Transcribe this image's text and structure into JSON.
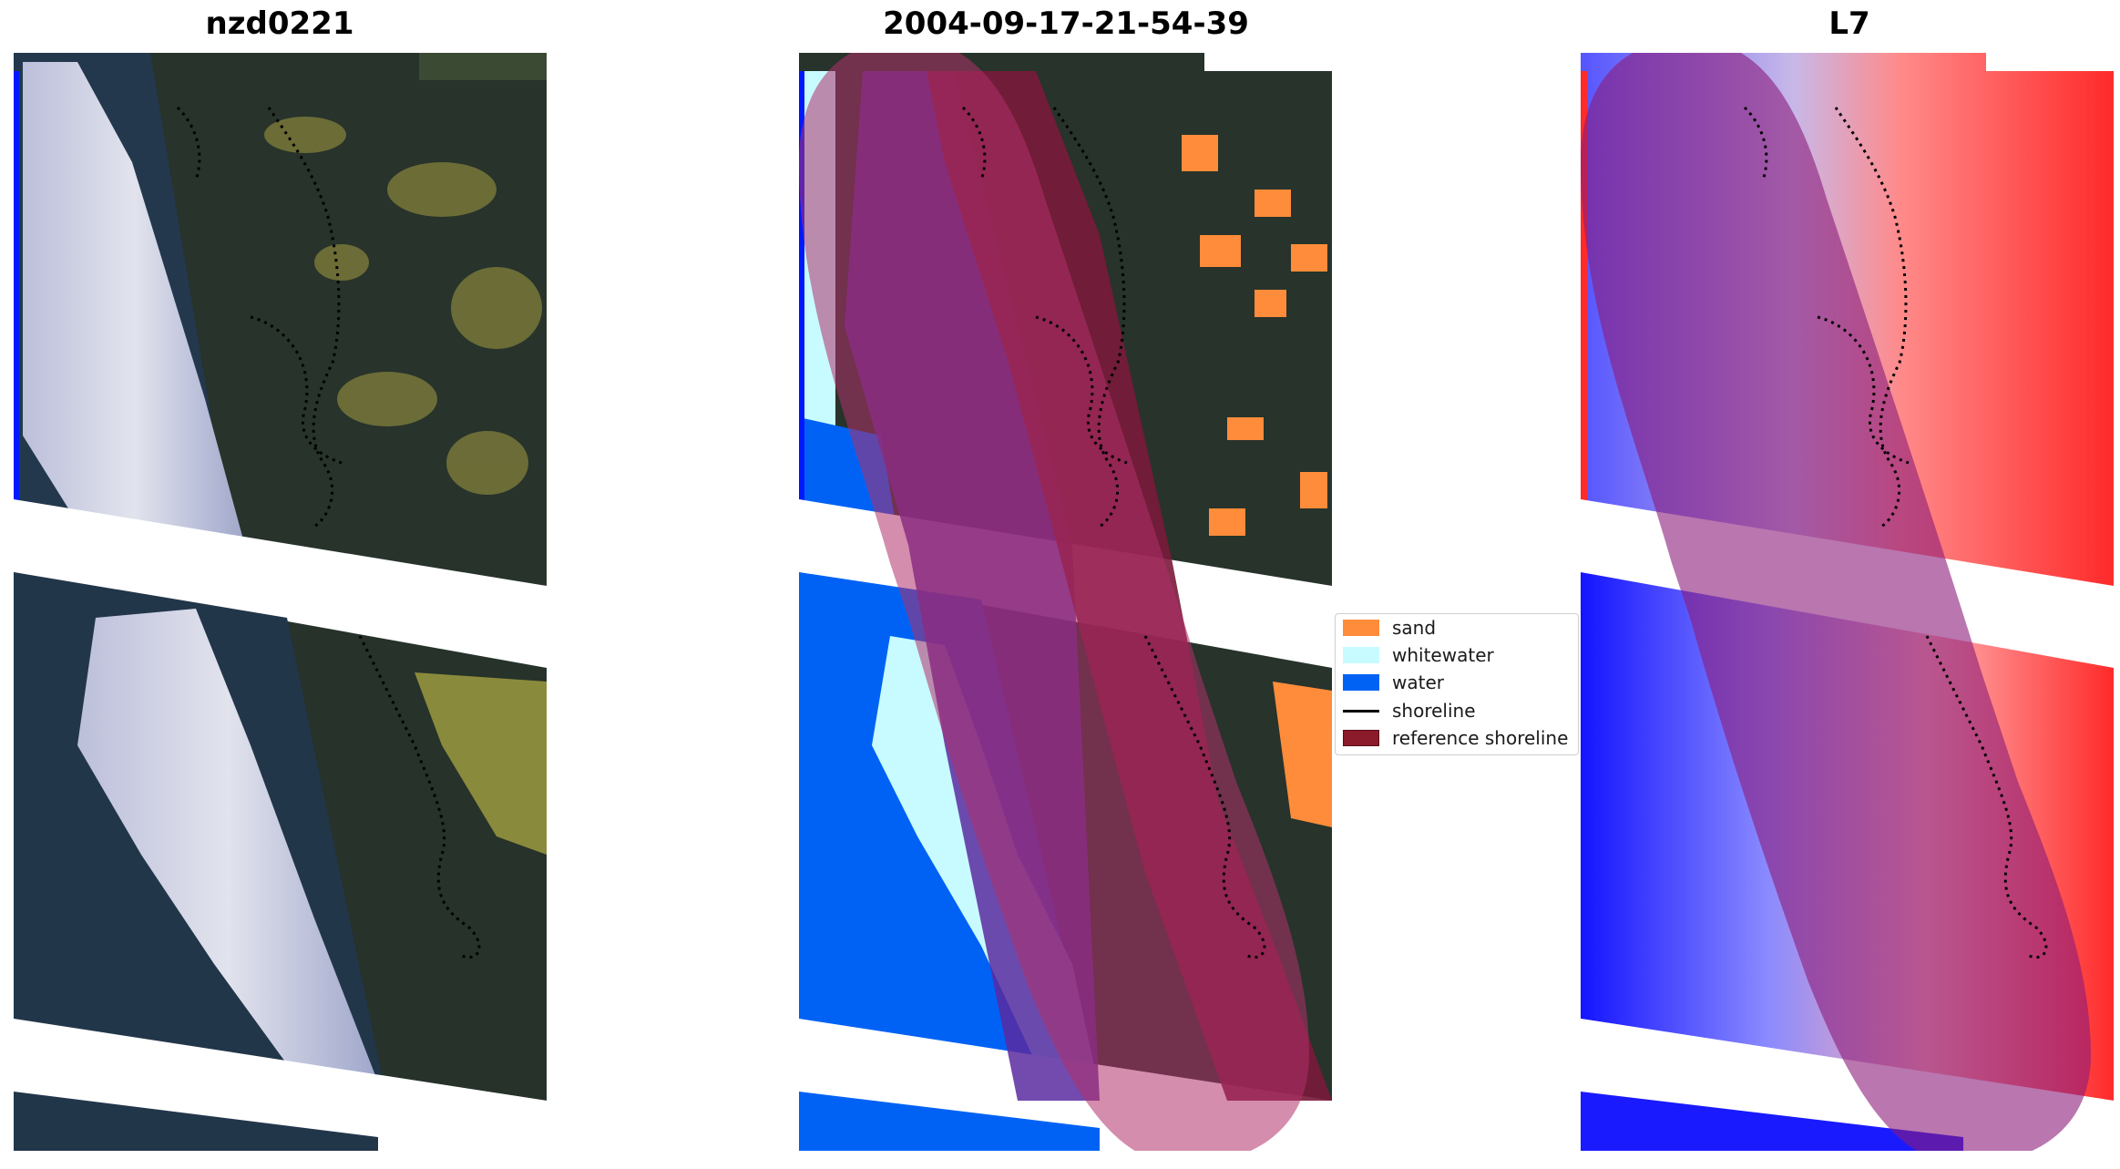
{
  "panels": [
    {
      "title": "nzd0221",
      "kind": "rgb"
    },
    {
      "title": "2004-09-17-21-54-39",
      "kind": "classified"
    },
    {
      "title": "L7",
      "kind": "index"
    }
  ],
  "legend": {
    "items": [
      {
        "label": "sand",
        "type": "patch",
        "color": "#ff8c3a"
      },
      {
        "label": "whitewater",
        "type": "patch",
        "color": "#c8fbff"
      },
      {
        "label": "water",
        "type": "patch",
        "color": "#0062f5"
      },
      {
        "label": "shoreline",
        "type": "line",
        "color": "#000000"
      },
      {
        "label": "reference shoreline",
        "type": "patch",
        "color": "#8b1a2a"
      }
    ]
  },
  "colors": {
    "buffer_overlay": "#b0306a",
    "land_dark": "#243028",
    "land_olive": "#7a7a38",
    "cloud": "#e6e6f5",
    "ocean_dark": "#1f3448",
    "index_red": "#ff2a2a",
    "index_blue": "#1414ff",
    "strip_blue": "#0018ff"
  }
}
